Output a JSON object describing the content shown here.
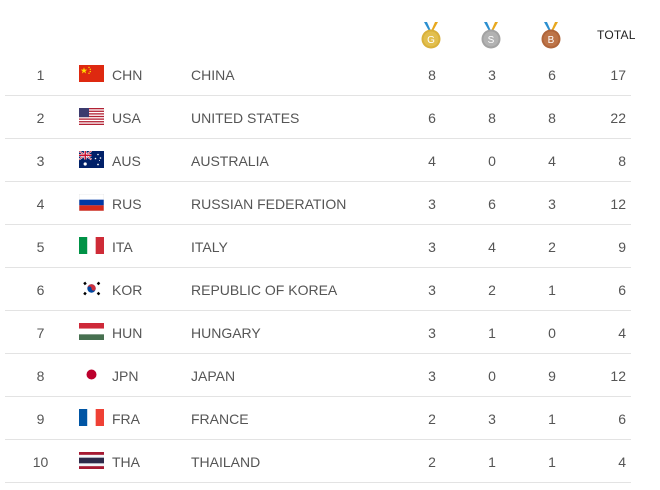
{
  "header": {
    "gold_letter": "G",
    "silver_letter": "S",
    "bronze_letter": "B",
    "total_label": "TOTAL"
  },
  "colors": {
    "gold": "#d9b13b",
    "silver": "#a3a3a3",
    "bronze": "#b0653a",
    "ribbon_left": "#2a8fd0",
    "ribbon_right": "#e8a81e"
  },
  "rows": [
    {
      "rank": "1",
      "flag": "china-flag",
      "code": "CHN",
      "name": "CHINA",
      "gold": "8",
      "silver": "3",
      "bronze": "6",
      "total": "17"
    },
    {
      "rank": "2",
      "flag": "usa-flag",
      "code": "USA",
      "name": "UNITED STATES",
      "gold": "6",
      "silver": "8",
      "bronze": "8",
      "total": "22"
    },
    {
      "rank": "3",
      "flag": "australia-flag",
      "code": "AUS",
      "name": "AUSTRALIA",
      "gold": "4",
      "silver": "0",
      "bronze": "4",
      "total": "8"
    },
    {
      "rank": "4",
      "flag": "russia-flag",
      "code": "RUS",
      "name": "RUSSIAN FEDERATION",
      "gold": "3",
      "silver": "6",
      "bronze": "3",
      "total": "12"
    },
    {
      "rank": "5",
      "flag": "italy-flag",
      "code": "ITA",
      "name": "ITALY",
      "gold": "3",
      "silver": "4",
      "bronze": "2",
      "total": "9"
    },
    {
      "rank": "6",
      "flag": "korea-flag",
      "code": "KOR",
      "name": "REPUBLIC OF KOREA",
      "gold": "3",
      "silver": "2",
      "bronze": "1",
      "total": "6"
    },
    {
      "rank": "7",
      "flag": "hungary-flag",
      "code": "HUN",
      "name": "HUNGARY",
      "gold": "3",
      "silver": "1",
      "bronze": "0",
      "total": "4"
    },
    {
      "rank": "8",
      "flag": "japan-flag",
      "code": "JPN",
      "name": "JAPAN",
      "gold": "3",
      "silver": "0",
      "bronze": "9",
      "total": "12"
    },
    {
      "rank": "9",
      "flag": "france-flag",
      "code": "FRA",
      "name": "FRANCE",
      "gold": "2",
      "silver": "3",
      "bronze": "1",
      "total": "6"
    },
    {
      "rank": "10",
      "flag": "thailand-flag",
      "code": "THA",
      "name": "THAILAND",
      "gold": "2",
      "silver": "1",
      "bronze": "1",
      "total": "4"
    }
  ]
}
